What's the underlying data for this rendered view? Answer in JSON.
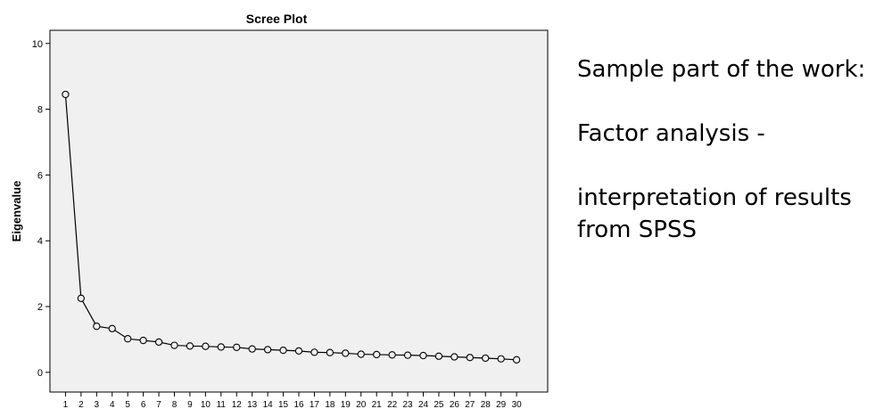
{
  "chart_data": {
    "type": "line",
    "title": "Scree Plot",
    "xlabel": "",
    "ylabel": "Eigenvalue",
    "x": [
      1,
      2,
      3,
      4,
      5,
      6,
      7,
      8,
      9,
      10,
      11,
      12,
      13,
      14,
      15,
      16,
      17,
      18,
      19,
      20,
      21,
      22,
      23,
      24,
      25,
      26,
      27,
      28,
      29,
      30
    ],
    "y": [
      8.45,
      2.25,
      1.4,
      1.33,
      1.02,
      0.97,
      0.92,
      0.82,
      0.8,
      0.79,
      0.77,
      0.76,
      0.71,
      0.69,
      0.67,
      0.65,
      0.61,
      0.6,
      0.58,
      0.55,
      0.54,
      0.53,
      0.52,
      0.51,
      0.49,
      0.47,
      0.45,
      0.43,
      0.41,
      0.38
    ],
    "ylim": [
      -0.6,
      10.4
    ],
    "yticks": [
      0,
      2,
      4,
      6,
      8,
      10
    ],
    "xlim": [
      0,
      32
    ],
    "markers": "open-circle",
    "grid": false,
    "colors": {
      "plot_background": "#f0f0f0",
      "line": "#000000"
    }
  },
  "side_text": {
    "line1": "Sample part of the work:",
    "line2": "Factor analysis -",
    "line3": "interpretation of results from SPSS"
  }
}
